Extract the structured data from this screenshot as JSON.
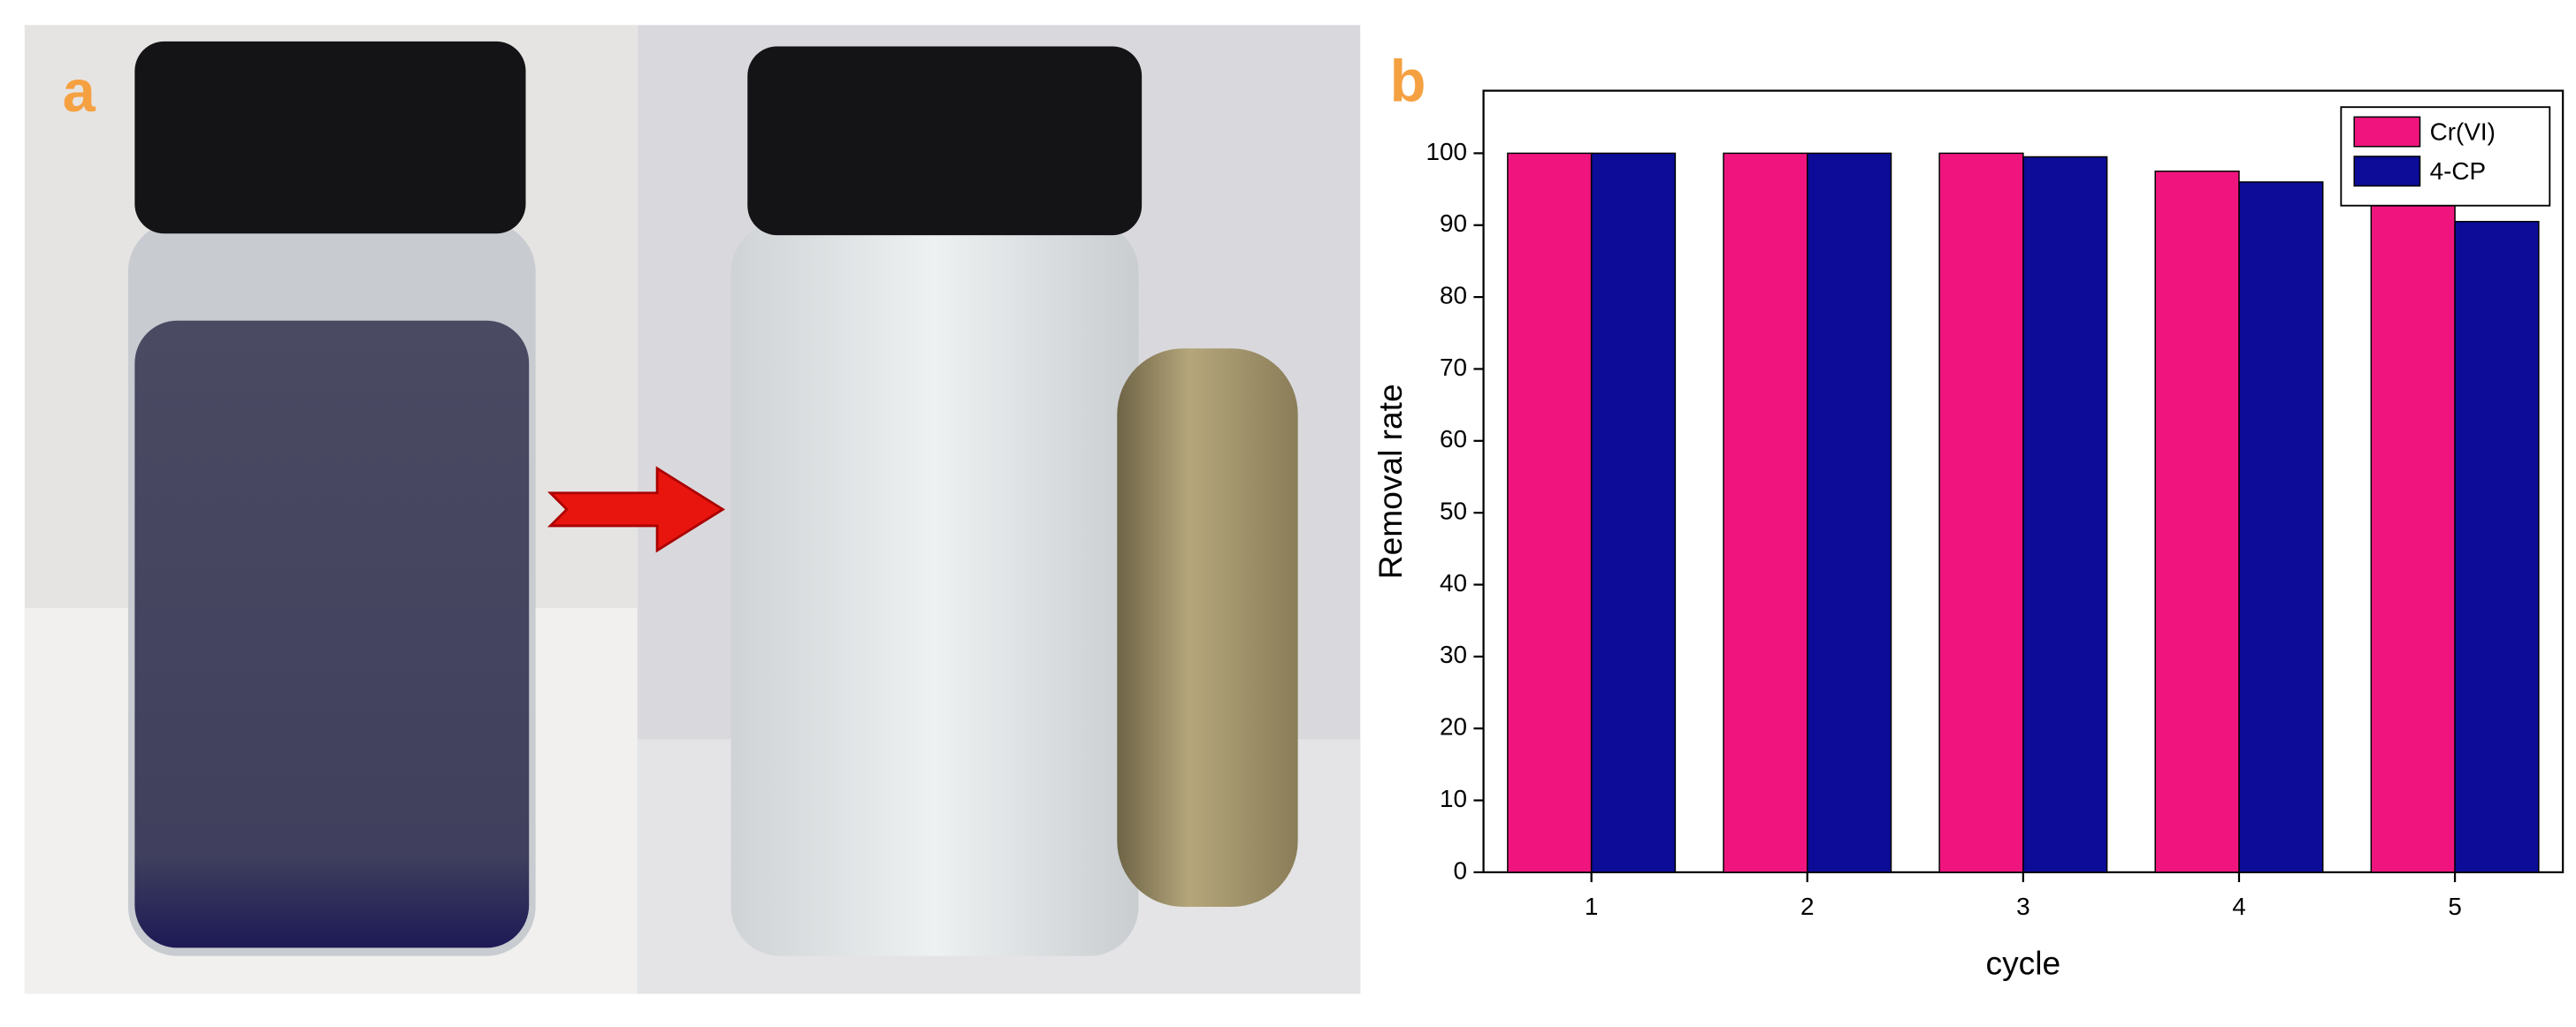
{
  "panel_labels": [
    "a",
    "b"
  ],
  "chart_data": {
    "type": "bar",
    "x_label": "cycle",
    "y_label": "Removal rate",
    "categories": [
      "1",
      "2",
      "3",
      "4",
      "5"
    ],
    "series": [
      {
        "name": "Cr(VI)",
        "color": "#f0157e",
        "values": [
          100,
          100,
          100,
          97.5,
          93
        ]
      },
      {
        "name": "4-CP",
        "color": "#0c0c98",
        "values": [
          100,
          100,
          99.5,
          96,
          90.5
        ]
      }
    ],
    "ylim": [
      0,
      108.7
    ],
    "yticks": [
      0,
      10,
      20,
      30,
      40,
      50,
      60,
      70,
      80,
      90,
      100
    ],
    "legend": "upper right"
  }
}
